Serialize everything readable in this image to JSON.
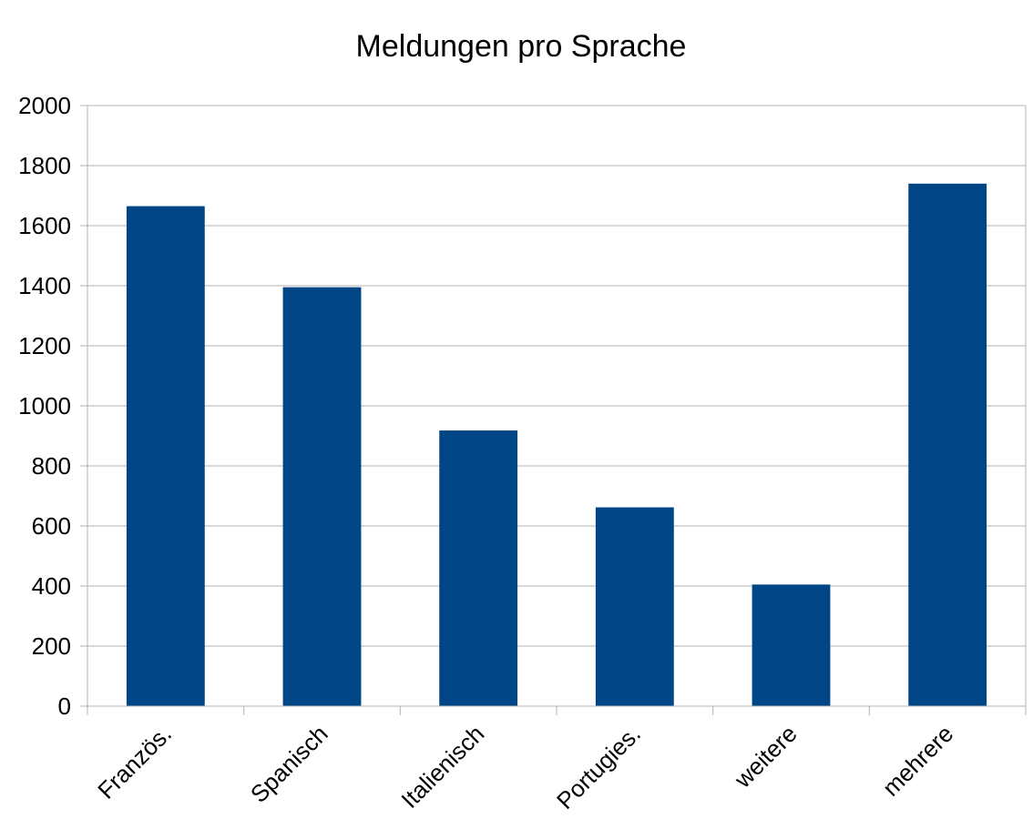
{
  "chart_data": {
    "type": "bar",
    "title": "Meldungen pro Sprache",
    "xlabel": "",
    "ylabel": "",
    "categories": [
      "Französ.",
      "Spanisch",
      "Italienisch",
      "Portugies.",
      "weitere",
      "mehrere"
    ],
    "values": [
      1665,
      1395,
      918,
      662,
      405,
      1740
    ],
    "ylim": [
      0,
      2000
    ],
    "yticks": [
      0,
      200,
      400,
      600,
      800,
      1000,
      1200,
      1400,
      1600,
      1800,
      2000
    ],
    "grid": true,
    "legend": "none",
    "bar_color": "#004586",
    "grid_color": "#b3b3b3"
  }
}
